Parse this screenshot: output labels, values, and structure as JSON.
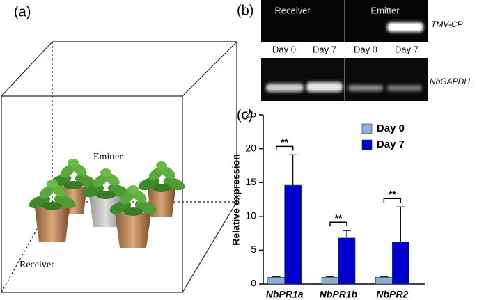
{
  "panel_a": {
    "label": "(a)",
    "emitter": "Emitter",
    "receiver": "Receiver"
  },
  "panel_b": {
    "label": "(b)",
    "columns_top": [
      "Receiver",
      "Emitter"
    ],
    "gene_top": "TMV-CP",
    "days": [
      "Day 0",
      "Day 7",
      "Day 0",
      "Day 7"
    ],
    "gene_bottom": "NbGAPDH"
  },
  "chart_data": {
    "type": "bar",
    "panel_label": "(c)",
    "ylabel": "Relative expression",
    "categories": [
      "NbPR1a",
      "NbPR1b",
      "NbPR2"
    ],
    "series": [
      {
        "name": "Day 0",
        "color": "#8eb0d8",
        "values": [
          1.0,
          1.0,
          1.0
        ],
        "errors": [
          0.1,
          0.1,
          0.1
        ]
      },
      {
        "name": "Day 7",
        "color": "#0000cc",
        "values": [
          14.6,
          6.8,
          6.2
        ],
        "errors": [
          4.5,
          1.1,
          5.2
        ]
      }
    ],
    "significance": [
      "**",
      "**",
      "**"
    ],
    "ylim": [
      0,
      25
    ],
    "yticks": [
      0,
      5,
      10,
      15,
      20,
      25
    ],
    "legend": "upper right"
  }
}
